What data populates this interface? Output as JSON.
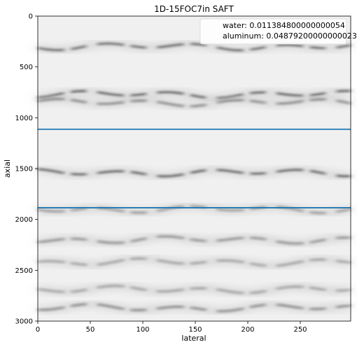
{
  "chart_data": {
    "type": "heatmap",
    "title": "1D-15FOC7in SAFT",
    "xlabel": "lateral",
    "ylabel": "axial",
    "xlim": [
      0,
      298
    ],
    "ylim": [
      3000,
      0
    ],
    "x_ticks": [
      0,
      50,
      100,
      150,
      200,
      250
    ],
    "y_ticks": [
      0,
      500,
      1000,
      1500,
      2000,
      2500,
      3000
    ],
    "colormap": "gray_r",
    "background_color": "#ffffff",
    "image_base_color": "#f0f0f0",
    "reflector_color": "#1e1e1e",
    "hlines": [
      {
        "y": 1113,
        "color": "#1f77b4"
      },
      {
        "y": 1885,
        "color": "#1f77b4"
      }
    ],
    "legend": {
      "location": "upper right",
      "entries": [
        {
          "label": "water: 0.011384800000000054"
        },
        {
          "label": "aluminum: 0.04879200000000023"
        }
      ]
    },
    "reflector_bands": [
      {
        "y": 300,
        "strength": 0.8
      },
      {
        "y": 770,
        "strength": 0.85
      },
      {
        "y": 850,
        "strength": 0.6
      },
      {
        "y": 1540,
        "strength": 0.85
      },
      {
        "y": 1900,
        "strength": 0.5
      },
      {
        "y": 2200,
        "strength": 0.55
      },
      {
        "y": 2420,
        "strength": 0.45
      },
      {
        "y": 2690,
        "strength": 0.45
      },
      {
        "y": 2870,
        "strength": 0.6
      }
    ]
  }
}
